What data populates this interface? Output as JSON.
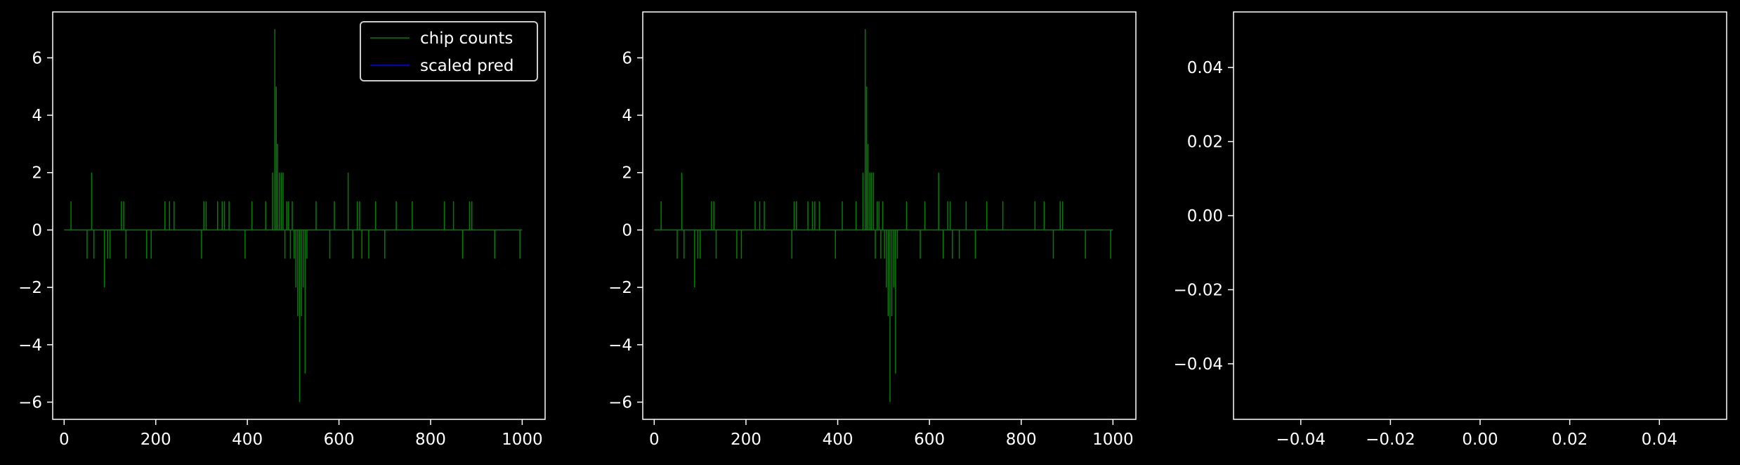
{
  "colors": {
    "background": "#000000",
    "axes_edge": "#ffffff",
    "text": "#ffffff",
    "chip_counts": "#008000",
    "scaled_pred": "#0000ff"
  },
  "legend": {
    "entries": [
      {
        "label": "chip counts",
        "color": "#008000"
      },
      {
        "label": "scaled pred",
        "color": "#0000ff"
      }
    ]
  },
  "chart_data": [
    {
      "type": "line",
      "grid": false,
      "legend_position": "top-right",
      "xlim": [
        -25,
        1050
      ],
      "ylim": [
        -6.6,
        7.6
      ],
      "xticks": [
        0,
        200,
        400,
        600,
        800,
        1000
      ],
      "yticks": [
        6,
        4,
        2,
        0,
        -2,
        -4,
        -6
      ],
      "xtick_labels": [
        "0",
        "200",
        "400",
        "600",
        "800",
        "1000"
      ],
      "ytick_labels": [
        "6",
        "4",
        "2",
        "0",
        "−2",
        "−4",
        "−6"
      ],
      "series": [
        {
          "name": "chip counts",
          "color": "#008000",
          "spikes": [
            [
              15,
              1
            ],
            [
              50,
              -1
            ],
            [
              60,
              2
            ],
            [
              65,
              -1
            ],
            [
              88,
              -2
            ],
            [
              95,
              -1
            ],
            [
              100,
              -1
            ],
            [
              125,
              1
            ],
            [
              130,
              1
            ],
            [
              135,
              -1
            ],
            [
              180,
              -1
            ],
            [
              190,
              -1
            ],
            [
              220,
              1
            ],
            [
              230,
              1
            ],
            [
              240,
              1
            ],
            [
              300,
              -1
            ],
            [
              305,
              1
            ],
            [
              310,
              1
            ],
            [
              335,
              1
            ],
            [
              345,
              1
            ],
            [
              350,
              1
            ],
            [
              360,
              1
            ],
            [
              395,
              -1
            ],
            [
              410,
              1
            ],
            [
              440,
              1
            ],
            [
              455,
              2
            ],
            [
              460,
              7
            ],
            [
              463,
              5
            ],
            [
              466,
              3
            ],
            [
              470,
              2
            ],
            [
              474,
              2
            ],
            [
              478,
              2
            ],
            [
              482,
              -1
            ],
            [
              486,
              1
            ],
            [
              490,
              1
            ],
            [
              494,
              -1
            ],
            [
              498,
              1
            ],
            [
              502,
              -1
            ],
            [
              506,
              -2
            ],
            [
              510,
              -3
            ],
            [
              514,
              -6
            ],
            [
              518,
              -3
            ],
            [
              522,
              -2
            ],
            [
              526,
              -5
            ],
            [
              530,
              -1
            ],
            [
              550,
              1
            ],
            [
              580,
              -1
            ],
            [
              590,
              1
            ],
            [
              620,
              2
            ],
            [
              630,
              -1
            ],
            [
              640,
              1
            ],
            [
              645,
              1
            ],
            [
              650,
              -1
            ],
            [
              665,
              -1
            ],
            [
              680,
              1
            ],
            [
              700,
              -1
            ],
            [
              725,
              1
            ],
            [
              760,
              1
            ],
            [
              830,
              1
            ],
            [
              850,
              1
            ],
            [
              870,
              -1
            ],
            [
              885,
              1
            ],
            [
              890,
              1
            ],
            [
              940,
              -1
            ],
            [
              995,
              -1
            ]
          ],
          "x_range": [
            0,
            1000
          ],
          "baseline": 0
        },
        {
          "name": "scaled pred",
          "color": "#0000ff",
          "values": []
        }
      ]
    },
    {
      "type": "line",
      "grid": false,
      "xlim": [
        -25,
        1050
      ],
      "ylim": [
        -6.6,
        7.6
      ],
      "xticks": [
        0,
        200,
        400,
        600,
        800,
        1000
      ],
      "yticks": [
        6,
        4,
        2,
        0,
        -2,
        -4,
        -6
      ],
      "xtick_labels": [
        "0",
        "200",
        "400",
        "600",
        "800",
        "1000"
      ],
      "ytick_labels": [
        "6",
        "4",
        "2",
        "0",
        "−2",
        "−4",
        "−6"
      ],
      "series": [
        {
          "color": "#008000",
          "spikes": [
            [
              15,
              1
            ],
            [
              50,
              -1
            ],
            [
              60,
              2
            ],
            [
              65,
              -1
            ],
            [
              88,
              -2
            ],
            [
              95,
              -1
            ],
            [
              100,
              -1
            ],
            [
              125,
              1
            ],
            [
              130,
              1
            ],
            [
              135,
              -1
            ],
            [
              180,
              -1
            ],
            [
              190,
              -1
            ],
            [
              220,
              1
            ],
            [
              230,
              1
            ],
            [
              240,
              1
            ],
            [
              300,
              -1
            ],
            [
              305,
              1
            ],
            [
              310,
              1
            ],
            [
              335,
              1
            ],
            [
              345,
              1
            ],
            [
              350,
              1
            ],
            [
              360,
              1
            ],
            [
              395,
              -1
            ],
            [
              410,
              1
            ],
            [
              440,
              1
            ],
            [
              455,
              2
            ],
            [
              460,
              7
            ],
            [
              463,
              5
            ],
            [
              466,
              3
            ],
            [
              470,
              2
            ],
            [
              474,
              2
            ],
            [
              478,
              2
            ],
            [
              482,
              -1
            ],
            [
              486,
              1
            ],
            [
              490,
              1
            ],
            [
              494,
              -1
            ],
            [
              498,
              1
            ],
            [
              502,
              -1
            ],
            [
              506,
              -2
            ],
            [
              510,
              -3
            ],
            [
              514,
              -6
            ],
            [
              518,
              -3
            ],
            [
              522,
              -2
            ],
            [
              526,
              -5
            ],
            [
              530,
              -1
            ],
            [
              550,
              1
            ],
            [
              580,
              -1
            ],
            [
              590,
              1
            ],
            [
              620,
              2
            ],
            [
              630,
              -1
            ],
            [
              640,
              1
            ],
            [
              645,
              1
            ],
            [
              650,
              -1
            ],
            [
              665,
              -1
            ],
            [
              680,
              1
            ],
            [
              700,
              -1
            ],
            [
              725,
              1
            ],
            [
              760,
              1
            ],
            [
              830,
              1
            ],
            [
              850,
              1
            ],
            [
              870,
              -1
            ],
            [
              885,
              1
            ],
            [
              890,
              1
            ],
            [
              940,
              -1
            ],
            [
              995,
              -1
            ]
          ],
          "x_range": [
            0,
            1000
          ],
          "baseline": 0
        }
      ]
    },
    {
      "type": "line",
      "grid": false,
      "xlim": [
        -0.055,
        0.055
      ],
      "ylim": [
        -0.055,
        0.055
      ],
      "xticks": [
        -0.04,
        -0.02,
        0.0,
        0.02,
        0.04
      ],
      "yticks": [
        0.04,
        0.02,
        0.0,
        -0.02,
        -0.04
      ],
      "xtick_labels": [
        "−0.04",
        "−0.02",
        "0.00",
        "0.02",
        "0.04"
      ],
      "ytick_labels": [
        "0.04",
        "0.02",
        "0.00",
        "−0.02",
        "−0.04"
      ],
      "series": []
    }
  ]
}
